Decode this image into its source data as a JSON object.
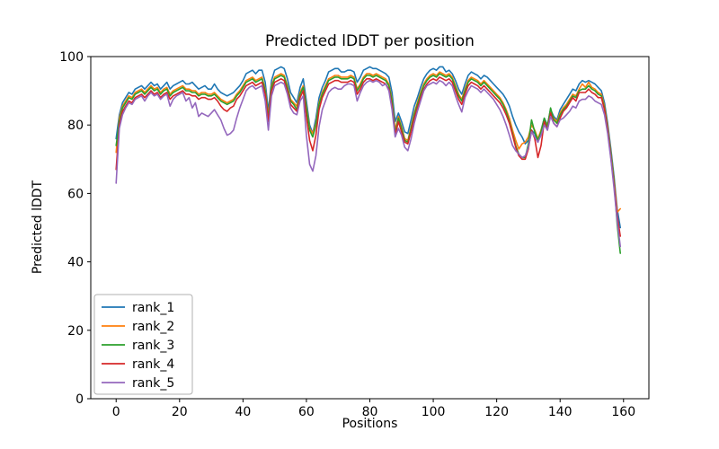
{
  "chart_data": {
    "type": "line",
    "title": "Predicted lDDT per position",
    "xlabel": "Positions",
    "ylabel": "Predicted lDDT",
    "xlim": [
      -8,
      168
    ],
    "ylim": [
      0,
      100
    ],
    "x_ticks": [
      0,
      20,
      40,
      60,
      80,
      100,
      120,
      140,
      160
    ],
    "y_ticks": [
      0,
      20,
      40,
      60,
      80,
      100
    ],
    "grid": false,
    "legend_position": "lower left",
    "x_start": 0,
    "x_step": 1,
    "axis_color": "#000000",
    "background_color": "#ffffff",
    "legend_border_color": "#b0b0b0",
    "series": [
      {
        "name": "rank_1",
        "color": "#1f77b4",
        "values": [
          76,
          83,
          86.5,
          88,
          89.5,
          89,
          90.5,
          91,
          91.5,
          90.5,
          91.5,
          92.5,
          91.5,
          92,
          90.5,
          91.5,
          92.5,
          90.5,
          91.5,
          92,
          92.5,
          93,
          92,
          92,
          92.5,
          91.5,
          90.5,
          91,
          91.5,
          90.5,
          90.5,
          92,
          90.5,
          89.5,
          89,
          88.5,
          89,
          89.5,
          90.5,
          91.5,
          93,
          95,
          95.5,
          96,
          95,
          96,
          96,
          92.5,
          84,
          93,
          96,
          96.5,
          97,
          96.5,
          93.5,
          89.5,
          88,
          86.5,
          91,
          93.5,
          87,
          80,
          77.5,
          82,
          88,
          91,
          93,
          95.5,
          96,
          96.5,
          96.5,
          95.5,
          95.5,
          96,
          96,
          95.5,
          92.5,
          94,
          96,
          96.5,
          97,
          96.5,
          96.5,
          96,
          95.5,
          95,
          94,
          89.5,
          81,
          83.5,
          81,
          78,
          77.5,
          81.5,
          85.5,
          88,
          91,
          93.5,
          95,
          96,
          96.5,
          96,
          97,
          97,
          95.5,
          96,
          95,
          93,
          90.5,
          89,
          92,
          94.5,
          95.5,
          95,
          94.5,
          93.5,
          94.5,
          94,
          93,
          92,
          91,
          90,
          89,
          87.5,
          85.5,
          82.5,
          80,
          78,
          76.5,
          74.5,
          75.5,
          78.5,
          77.5,
          75,
          78.5,
          82,
          80,
          84.5,
          82.5,
          81.5,
          84.5,
          86,
          87.5,
          89,
          90.5,
          90,
          92,
          93,
          92.5,
          93,
          92.5,
          92,
          91,
          90,
          86.5,
          80.5,
          73,
          65,
          55.5,
          50
        ]
      },
      {
        "name": "rank_2",
        "color": "#ff7f0e",
        "values": [
          72,
          82,
          85.5,
          87,
          88.5,
          88,
          89.5,
          90,
          90.5,
          89.5,
          90.5,
          91.5,
          90.5,
          91,
          89.5,
          90.5,
          91,
          89,
          90,
          90.5,
          91,
          91.5,
          90.5,
          90.5,
          90,
          90,
          89,
          89.5,
          89.5,
          89,
          89,
          89.5,
          88.5,
          87.5,
          87,
          86.5,
          87,
          87.5,
          89,
          90,
          91.5,
          93,
          93.5,
          94,
          93,
          93.5,
          94,
          90.5,
          82.5,
          91.5,
          94,
          94.5,
          95,
          94.5,
          91.5,
          87.5,
          86.5,
          85.5,
          89.5,
          91.5,
          85.5,
          79,
          77.5,
          80.5,
          86.5,
          89.5,
          91.5,
          93.5,
          94,
          94.5,
          94.5,
          94,
          94,
          94,
          94.5,
          94,
          90.5,
          92,
          94,
          95,
          95,
          94.5,
          95,
          94.5,
          94,
          93.5,
          92,
          87.5,
          78.5,
          82.5,
          79.5,
          76,
          75.5,
          79.5,
          83.5,
          86.5,
          89.5,
          92,
          93.5,
          94.5,
          95,
          94.5,
          95.5,
          95,
          94.5,
          95,
          94,
          91.5,
          89,
          87.5,
          90.5,
          93,
          94,
          93.5,
          93,
          92,
          93,
          92,
          91,
          90,
          89,
          88,
          86.5,
          84.5,
          82,
          78.5,
          75.5,
          73,
          74.5,
          75,
          76.5,
          80,
          78.5,
          76,
          78.5,
          81.5,
          80,
          84,
          82,
          81,
          83.5,
          85,
          86,
          87.5,
          89,
          88.5,
          90.5,
          92,
          91,
          92.5,
          91,
          90.5,
          89.5,
          89,
          85.5,
          79.5,
          72,
          64,
          54.5,
          55.5
        ]
      },
      {
        "name": "rank_3",
        "color": "#2ca02c",
        "values": [
          74,
          81,
          85,
          86.5,
          88,
          87.5,
          89,
          89.5,
          90,
          89,
          90,
          91,
          90,
          90.5,
          89,
          90,
          90.5,
          88.5,
          89.5,
          90,
          90.5,
          91,
          90,
          90,
          89.5,
          89.5,
          88.5,
          89,
          89,
          88.5,
          88.5,
          89,
          88,
          87,
          86.5,
          86,
          86.5,
          87,
          88.5,
          89.5,
          91,
          92.5,
          93,
          93.5,
          92.5,
          93,
          93.5,
          90,
          82,
          91,
          93.5,
          94,
          94.5,
          94,
          91,
          87,
          86,
          84.5,
          89,
          91,
          85,
          78.5,
          76.5,
          80,
          86,
          89,
          91,
          93,
          93.5,
          94,
          94,
          93.5,
          93.5,
          93.5,
          94,
          93.5,
          90,
          91.5,
          93.5,
          94.5,
          94.5,
          94,
          94.5,
          94,
          93.5,
          93,
          91.5,
          87,
          77.5,
          82,
          79,
          75.5,
          75,
          79,
          83,
          86,
          89,
          91.5,
          93,
          94,
          94.5,
          94,
          95,
          94.5,
          94,
          94.5,
          93.5,
          91,
          88.5,
          87,
          90,
          92.5,
          93.5,
          93,
          92.5,
          91.5,
          92.5,
          91.5,
          90.5,
          89.5,
          88.5,
          87.5,
          86,
          84,
          81,
          77.5,
          74,
          71.5,
          70.5,
          70.5,
          74.5,
          81.5,
          78,
          75.5,
          78,
          82,
          79.5,
          85,
          81.5,
          80.5,
          83,
          84.5,
          85.5,
          87,
          88.5,
          88,
          90,
          90.5,
          90.5,
          91.5,
          90.5,
          90,
          89,
          88.5,
          85,
          79,
          71.5,
          63.5,
          51,
          42.5
        ]
      },
      {
        "name": "rank_4",
        "color": "#d62728",
        "values": [
          67,
          80,
          84,
          85.5,
          87,
          86.5,
          88,
          88.5,
          89,
          88,
          89,
          90,
          89,
          89.5,
          88,
          89,
          89.5,
          87.5,
          88.5,
          89,
          89.5,
          90,
          89,
          89,
          88.5,
          88.5,
          87.5,
          88,
          88,
          87.5,
          87.5,
          88,
          87,
          85.5,
          84.5,
          84,
          85,
          85.5,
          87.5,
          88.5,
          90,
          91.5,
          92,
          92.5,
          91.5,
          92,
          92.5,
          89,
          81,
          90,
          92.5,
          93,
          93.5,
          93,
          90,
          86,
          85,
          84,
          88,
          90,
          82.5,
          75.5,
          72.5,
          77,
          84.5,
          88,
          90,
          92,
          92.5,
          93,
          93,
          92.5,
          92.5,
          92.5,
          93,
          92.5,
          89,
          90.5,
          92.5,
          93.5,
          93.5,
          93,
          93.5,
          93,
          92.5,
          92,
          90.5,
          85.5,
          77,
          81,
          78,
          75,
          74.5,
          78,
          82,
          85,
          88,
          90.5,
          92,
          93,
          93.5,
          93,
          94,
          93.5,
          93,
          93.5,
          92.5,
          90,
          87.5,
          86,
          89,
          91.5,
          92.5,
          92,
          91.5,
          90.5,
          91.5,
          90.5,
          89.5,
          88.5,
          87.5,
          86.5,
          85,
          83,
          80.5,
          77,
          73.5,
          71,
          70,
          70,
          73,
          78.5,
          76,
          70.5,
          74,
          81,
          78.5,
          83.5,
          80.5,
          79.5,
          82,
          84,
          85,
          86.5,
          88,
          87,
          89.5,
          89.5,
          89.5,
          90.5,
          89.5,
          89,
          88,
          88,
          84.5,
          78.5,
          70.5,
          62.5,
          53.5,
          47.5
        ]
      },
      {
        "name": "rank_5",
        "color": "#9467bd",
        "values": [
          63,
          79,
          83,
          85,
          86.5,
          86,
          87.5,
          88,
          88.5,
          87,
          88.5,
          89.5,
          88.5,
          89,
          87.5,
          88.5,
          89,
          85.5,
          87.5,
          88.5,
          89,
          89.5,
          87,
          88,
          85,
          86.5,
          82.5,
          83.5,
          83,
          82.5,
          83.5,
          84.5,
          83,
          81.5,
          79,
          77,
          77.5,
          78.5,
          82,
          85,
          87.5,
          90,
          91,
          91.5,
          90.5,
          91,
          91.5,
          87,
          78.5,
          88.5,
          91.5,
          92,
          92.5,
          92,
          89,
          85,
          83.5,
          83,
          87,
          88.5,
          77,
          68.5,
          66.5,
          71,
          79.5,
          84.5,
          87,
          89.5,
          90.5,
          91,
          90.5,
          90.5,
          91.5,
          92,
          92,
          91.5,
          87,
          89.5,
          91.5,
          92.5,
          93,
          92.5,
          93,
          92.5,
          91.5,
          92,
          90,
          84.5,
          76.5,
          79,
          77,
          73.5,
          72.5,
          76,
          80.5,
          84,
          87,
          90,
          91.5,
          92,
          92.5,
          92,
          93,
          92.5,
          91.5,
          92.5,
          91.5,
          88.5,
          86,
          83.8,
          88,
          90,
          91.5,
          91,
          90.5,
          89.5,
          90.5,
          89.5,
          88.5,
          87.5,
          86,
          84.5,
          82.5,
          80,
          77,
          74,
          72.5,
          71.5,
          70.5,
          71,
          73.5,
          78,
          76.5,
          75,
          77,
          80,
          78.5,
          82.5,
          80.5,
          79.5,
          81.5,
          82,
          83,
          84,
          85.5,
          85,
          87,
          87.5,
          87.5,
          88.5,
          88,
          87,
          86.5,
          86,
          83,
          77.5,
          70,
          61.5,
          52,
          44.5
        ]
      }
    ]
  }
}
